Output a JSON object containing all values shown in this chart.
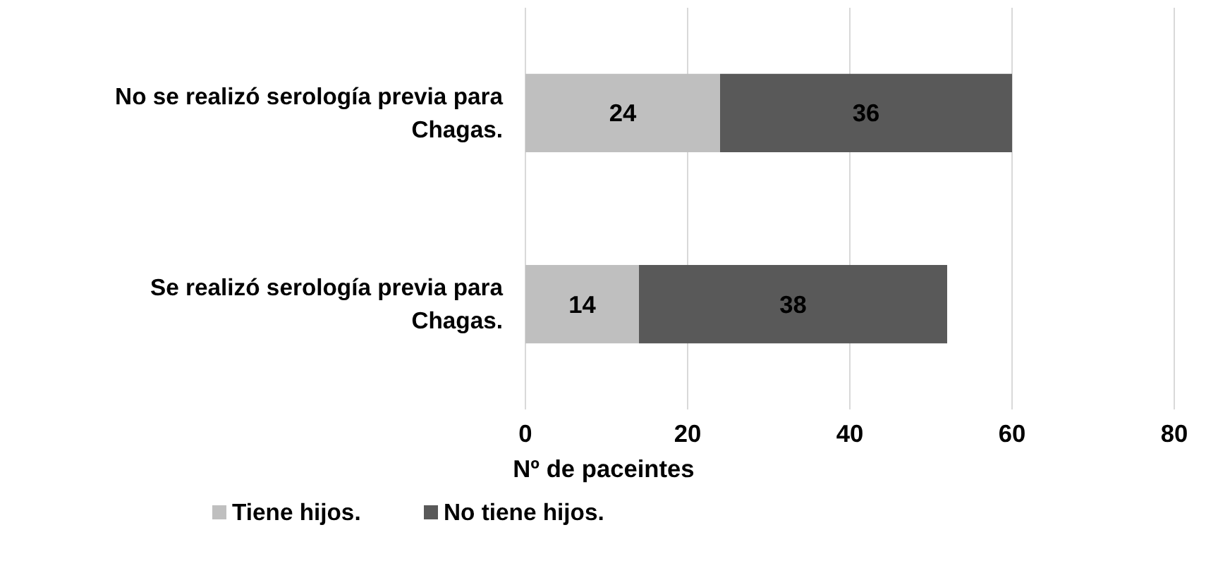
{
  "chart_data": {
    "type": "bar",
    "orientation": "horizontal",
    "stacked": true,
    "categories": [
      "No se realizó serología previa para Chagas.",
      "Se realizó serología previa para Chagas."
    ],
    "series": [
      {
        "name": "Tiene hijos.",
        "color": "#bfbfbf",
        "values": [
          24,
          14
        ]
      },
      {
        "name": "No tiene hijos.",
        "color": "#595959",
        "values": [
          36,
          38
        ]
      }
    ],
    "xlabel": "Nº de paceintes",
    "xlim": [
      0,
      80
    ],
    "xticks": [
      0,
      20,
      40,
      60,
      80
    ],
    "grid": "x",
    "legend": "bottom left",
    "data_labels": true
  }
}
